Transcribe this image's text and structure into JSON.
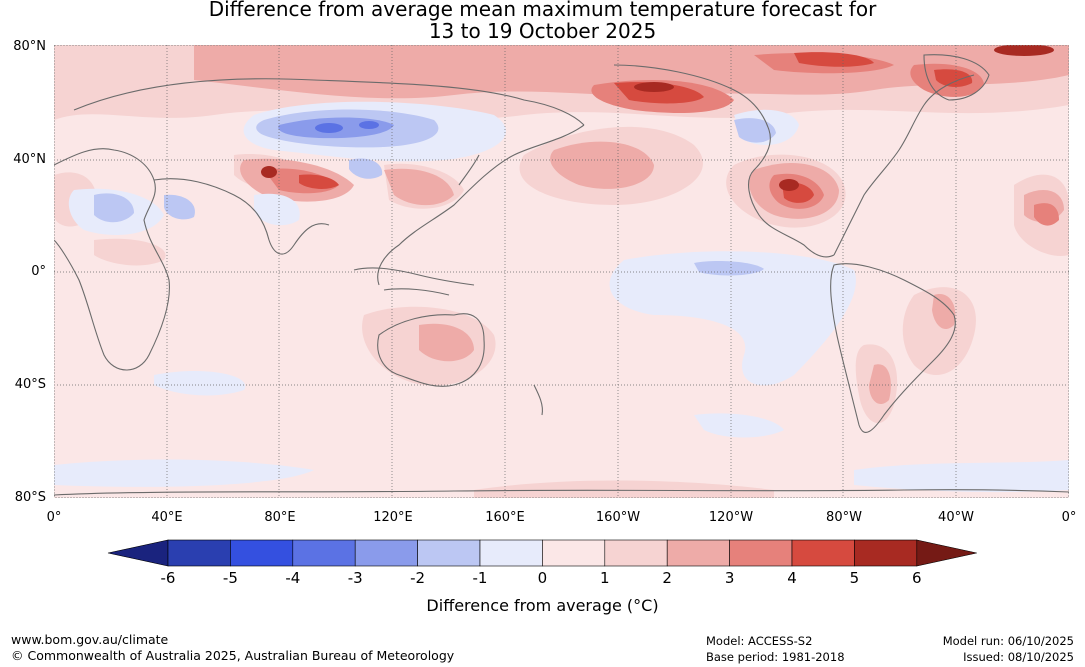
{
  "title": {
    "line1": "Difference from average mean maximum temperature forecast for",
    "line2": "13 to 19 October 2025"
  },
  "map": {
    "lat_labels": [
      "80°N",
      "40°N",
      "0°",
      "40°S",
      "80°S"
    ],
    "lon_labels": [
      "0°",
      "40°E",
      "80°E",
      "120°E",
      "160°E",
      "160°W",
      "120°W",
      "80°W",
      "40°W",
      "0°"
    ]
  },
  "colorbar": {
    "ticks": [
      "-6",
      "-5",
      "-4",
      "-3",
      "-2",
      "-1",
      "0",
      "1",
      "2",
      "3",
      "4",
      "5",
      "6"
    ],
    "colors": [
      "#1a237e",
      "#2a3fb0",
      "#3450e0",
      "#5b72e4",
      "#8a9beb",
      "#bcc7f3",
      "#e7ebfb",
      "#fbe7e7",
      "#f6d3d2",
      "#eeaba8",
      "#e6817b",
      "#d64a3f",
      "#a82a22",
      "#751a15"
    ],
    "label": "Difference from average (°C)"
  },
  "footer": {
    "website": "www.bom.gov.au/climate",
    "copyright": "© Commonwealth of Australia 2025, Australian Bureau of Meteorology",
    "model": "Model: ACCESS-S2",
    "base_period": "Base period: 1981-2018",
    "model_run": "Model run: 06/10/2025",
    "issued": "Issued: 08/10/2025"
  }
}
